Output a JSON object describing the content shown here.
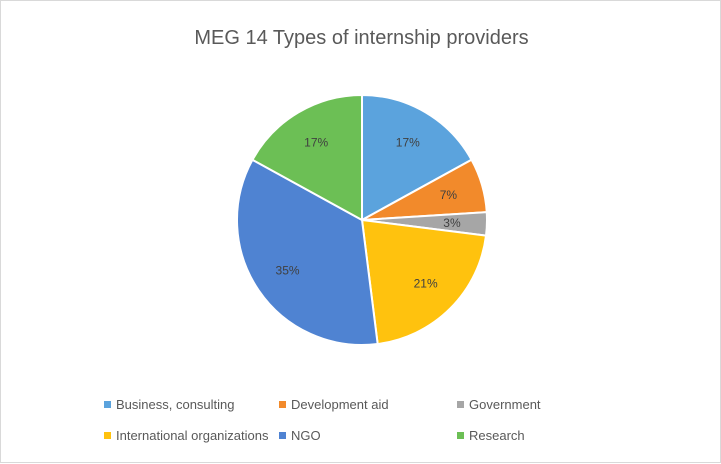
{
  "chart_data": {
    "type": "pie",
    "title": "MEG 14 Types of internship providers",
    "categories": [
      "Business, consulting",
      "Development aid",
      "Government",
      "International organizations",
      "NGO",
      "Research"
    ],
    "values": [
      17,
      7,
      3,
      21,
      35,
      17
    ],
    "labels": [
      "17%",
      "7%",
      "3%",
      "21%",
      "35%",
      "17%"
    ],
    "colors": [
      "#5ba3dd",
      "#f28a2b",
      "#a6a6a6",
      "#ffc20e",
      "#4f83d2",
      "#6cbf55"
    ],
    "legend_position": "bottom"
  }
}
